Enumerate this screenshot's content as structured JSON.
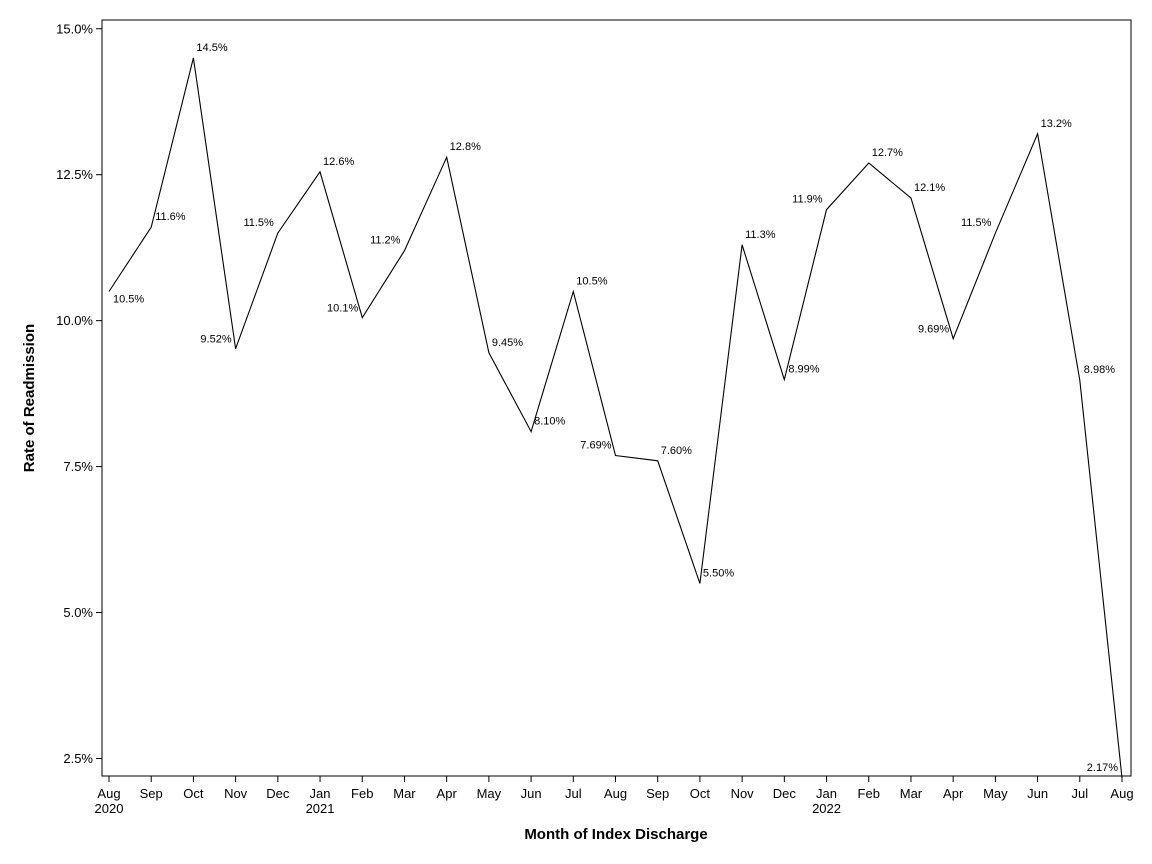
{
  "chart_data": {
    "type": "line",
    "xlabel": "Month of Index Discharge",
    "ylabel": "Rate of Readmission",
    "ylim": [
      2.2,
      15.15
    ],
    "yticks": [
      {
        "value": 2.5,
        "label": "2.5%"
      },
      {
        "value": 5.0,
        "label": "5.0%"
      },
      {
        "value": 7.5,
        "label": "7.5%"
      },
      {
        "value": 10.0,
        "label": "10.0%"
      },
      {
        "value": 12.5,
        "label": "12.5%"
      },
      {
        "value": 15.0,
        "label": "15.0%"
      }
    ],
    "grid": false,
    "legend": "none",
    "x": [
      {
        "month": "Aug",
        "year": "2020",
        "value": 10.5,
        "label": "10.5%",
        "label_pos": "below-right"
      },
      {
        "month": "Sep",
        "year": "",
        "value": 11.6,
        "label": "11.6%",
        "label_pos": "right"
      },
      {
        "month": "Oct",
        "year": "",
        "value": 14.5,
        "label": "14.5%",
        "label_pos": "above-right"
      },
      {
        "month": "Nov",
        "year": "",
        "value": 9.52,
        "label": "9.52%",
        "label_pos": "left"
      },
      {
        "month": "Dec",
        "year": "",
        "value": 11.5,
        "label": "11.5%",
        "label_pos": "above-left"
      },
      {
        "month": "Jan",
        "year": "2021",
        "value": 12.55,
        "label": "12.6%",
        "label_pos": "above-right"
      },
      {
        "month": "Feb",
        "year": "",
        "value": 10.05,
        "label": "10.1%",
        "label_pos": "left"
      },
      {
        "month": "Mar",
        "year": "",
        "value": 11.2,
        "label": "11.2%",
        "label_pos": "above-left"
      },
      {
        "month": "Apr",
        "year": "",
        "value": 12.8,
        "label": "12.8%",
        "label_pos": "above-right"
      },
      {
        "month": "May",
        "year": "",
        "value": 9.45,
        "label": "9.45%",
        "label_pos": "above-right"
      },
      {
        "month": "Jun",
        "year": "",
        "value": 8.1,
        "label": "8.10%",
        "label_pos": "above-right"
      },
      {
        "month": "Jul",
        "year": "",
        "value": 10.5,
        "label": "10.5%",
        "label_pos": "above-right"
      },
      {
        "month": "Aug",
        "year": "",
        "value": 7.69,
        "label": "7.69%",
        "label_pos": "above-left"
      },
      {
        "month": "Sep",
        "year": "",
        "value": 7.6,
        "label": "7.60%",
        "label_pos": "above-right"
      },
      {
        "month": "Oct",
        "year": "",
        "value": 5.5,
        "label": "5.50%",
        "label_pos": "above-right"
      },
      {
        "month": "Nov",
        "year": "",
        "value": 11.3,
        "label": "11.3%",
        "label_pos": "above-right"
      },
      {
        "month": "Dec",
        "year": "",
        "value": 8.99,
        "label": "8.99%",
        "label_pos": "right"
      },
      {
        "month": "Jan",
        "year": "2022",
        "value": 11.9,
        "label": "11.9%",
        "label_pos": "above-left"
      },
      {
        "month": "Feb",
        "year": "",
        "value": 12.7,
        "label": "12.7%",
        "label_pos": "above-right"
      },
      {
        "month": "Mar",
        "year": "",
        "value": 12.1,
        "label": "12.1%",
        "label_pos": "above-right"
      },
      {
        "month": "Apr",
        "year": "",
        "value": 9.69,
        "label": "9.69%",
        "label_pos": "left"
      },
      {
        "month": "May",
        "year": "",
        "value": 11.5,
        "label": "11.5%",
        "label_pos": "above-left"
      },
      {
        "month": "Jun",
        "year": "",
        "value": 13.2,
        "label": "13.2%",
        "label_pos": "above-right"
      },
      {
        "month": "Jul",
        "year": "",
        "value": 8.98,
        "label": "8.98%",
        "label_pos": "right"
      },
      {
        "month": "Aug",
        "year": "",
        "value": 2.17,
        "label": "2.17%",
        "label_pos": "above-left"
      }
    ]
  }
}
